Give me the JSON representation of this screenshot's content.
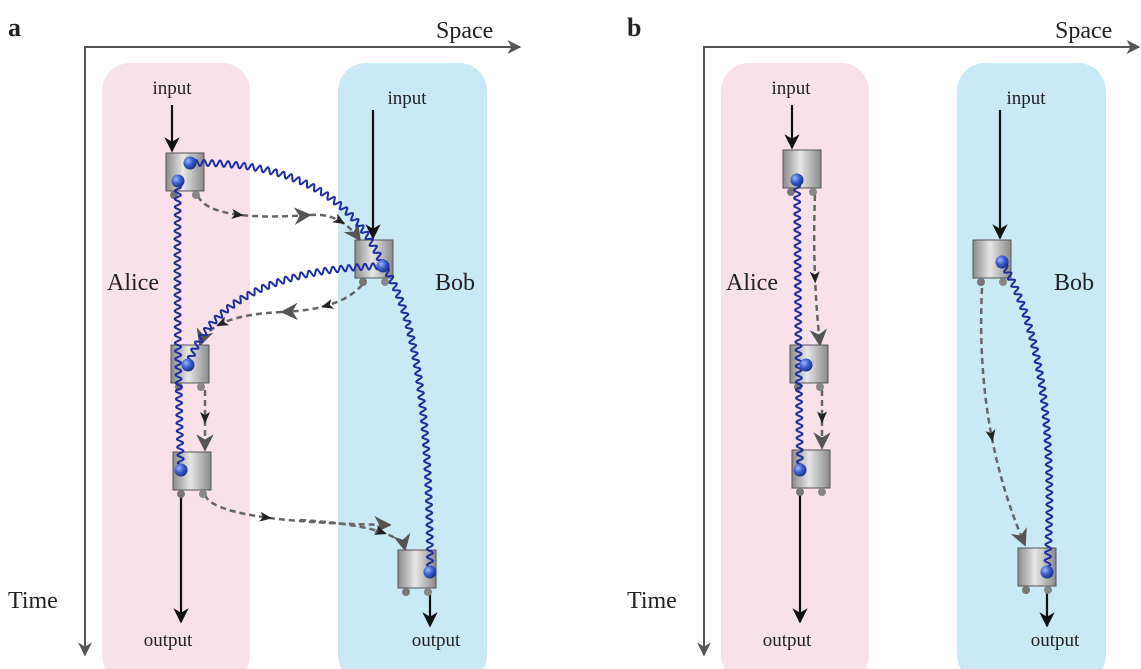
{
  "panels": [
    {
      "label": "a",
      "space_axis": "Space",
      "time_axis": "Time",
      "alice": {
        "name": "Alice",
        "input": "input",
        "output": "output"
      },
      "bob": {
        "name": "Bob",
        "input": "input",
        "output": "output"
      }
    },
    {
      "label": "b",
      "space_axis": "Space",
      "time_axis": "Time",
      "alice": {
        "name": "Alice",
        "input": "input",
        "output": "output"
      },
      "bob": {
        "name": "Bob",
        "input": "input",
        "output": "output"
      }
    }
  ]
}
